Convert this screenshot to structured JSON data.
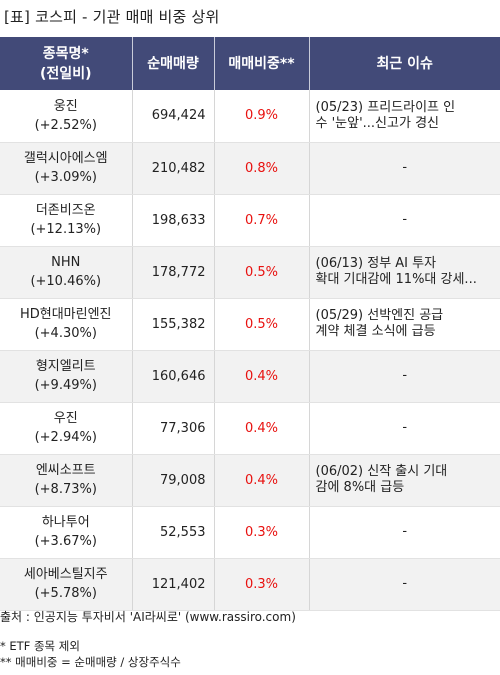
{
  "title": "[표] 코스피 - 기관 매매 비중 상위",
  "table": {
    "headers": {
      "name_line1": "종목명*",
      "name_line2": "(전일비)",
      "volume": "순매매량",
      "ratio": "매매비중**",
      "issue": "최근 이슈"
    },
    "rows": [
      {
        "name": "웅진",
        "change": "(+2.52%)",
        "volume": "694,424",
        "ratio": "0.9%",
        "issue_line1": "(05/23) 프리드라이프 인",
        "issue_line2": "수 '눈앞'...신고가 경신"
      },
      {
        "name": "갤럭시아에스엠",
        "change": "(+3.09%)",
        "volume": "210,482",
        "ratio": "0.8%",
        "issue_line1": "-",
        "issue_line2": ""
      },
      {
        "name": "더존비즈온",
        "change": "(+12.13%)",
        "volume": "198,633",
        "ratio": "0.7%",
        "issue_line1": "-",
        "issue_line2": ""
      },
      {
        "name": "NHN",
        "change": "(+10.46%)",
        "volume": "178,772",
        "ratio": "0.5%",
        "issue_line1": "(06/13) 정부 AI 투자",
        "issue_line2": "확대 기대감에 11%대 강세..."
      },
      {
        "name": "HD현대마린엔진",
        "change": "(+4.30%)",
        "volume": "155,382",
        "ratio": "0.5%",
        "issue_line1": "(05/29) 선박엔진 공급",
        "issue_line2": "계약 체결 소식에 급등"
      },
      {
        "name": "형지엘리트",
        "change": "(+9.49%)",
        "volume": "160,646",
        "ratio": "0.4%",
        "issue_line1": "-",
        "issue_line2": ""
      },
      {
        "name": "우진",
        "change": "(+2.94%)",
        "volume": "77,306",
        "ratio": "0.4%",
        "issue_line1": "-",
        "issue_line2": ""
      },
      {
        "name": "엔씨소프트",
        "change": "(+8.73%)",
        "volume": "79,008",
        "ratio": "0.4%",
        "issue_line1": "(06/02) 신작 출시 기대",
        "issue_line2": "감에 8%대 급등"
      },
      {
        "name": "하나투어",
        "change": "(+3.67%)",
        "volume": "52,553",
        "ratio": "0.3%",
        "issue_line1": "-",
        "issue_line2": ""
      },
      {
        "name": "세아베스틸지주",
        "change": "(+5.78%)",
        "volume": "121,402",
        "ratio": "0.3%",
        "issue_line1": "-",
        "issue_line2": ""
      }
    ]
  },
  "footer": {
    "source": "출처 : 인공지능 투자비서 'AI라씨로' (www.rassiro.com)",
    "note1": "* ETF 종목 제외",
    "note2": "** 매매비중 = 순매매량 / 상장주식수"
  },
  "colors": {
    "header_bg": "#424a78",
    "ratio_text": "#e8110f",
    "stripe_bg": "#f2f2f2"
  }
}
